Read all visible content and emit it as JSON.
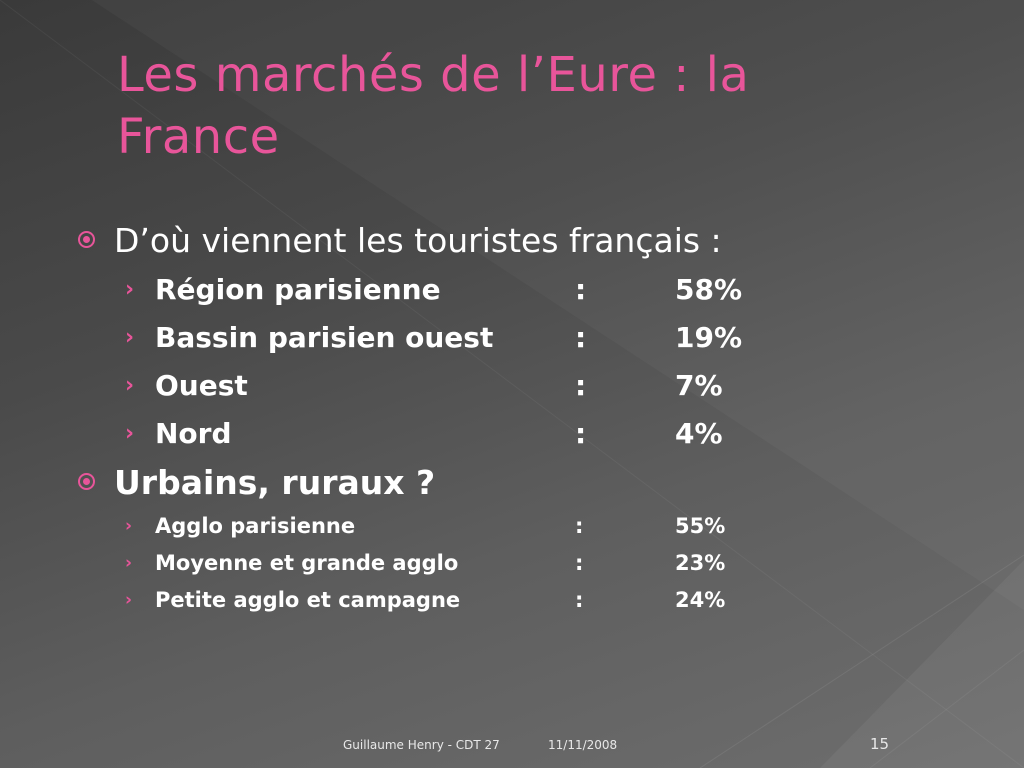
{
  "slide": {
    "title": "Les marchés de l’Eure : la France",
    "sections": [
      {
        "heading": "D’où viennent les touristes français :",
        "items": [
          {
            "label": "Région parisienne",
            "sep": ":",
            "value": "58%"
          },
          {
            "label": "Bassin parisien ouest",
            "sep": ":",
            "value": "19%"
          },
          {
            "label": "Ouest",
            "sep": ":",
            "value": "7%"
          },
          {
            "label": "Nord",
            "sep": ":",
            "value": "4%"
          }
        ]
      },
      {
        "heading": "Urbains, ruraux ?",
        "items": [
          {
            "label": "Agglo parisienne",
            "sep": ":",
            "value": "55%"
          },
          {
            "label": "Moyenne et grande agglo",
            "sep": ":",
            "value": "23%"
          },
          {
            "label": "Petite agglo et campagne",
            "sep": ":",
            "value": "24%"
          }
        ]
      }
    ],
    "chevron": "›"
  },
  "footer": {
    "author": "Guillaume Henry - CDT 27",
    "date": "11/11/2008",
    "page_number": "15"
  },
  "colors": {
    "accent": "#e8559a",
    "text": "#ffffff",
    "background_dark": "#3a3a3a",
    "background_light": "#6e6e6e"
  }
}
